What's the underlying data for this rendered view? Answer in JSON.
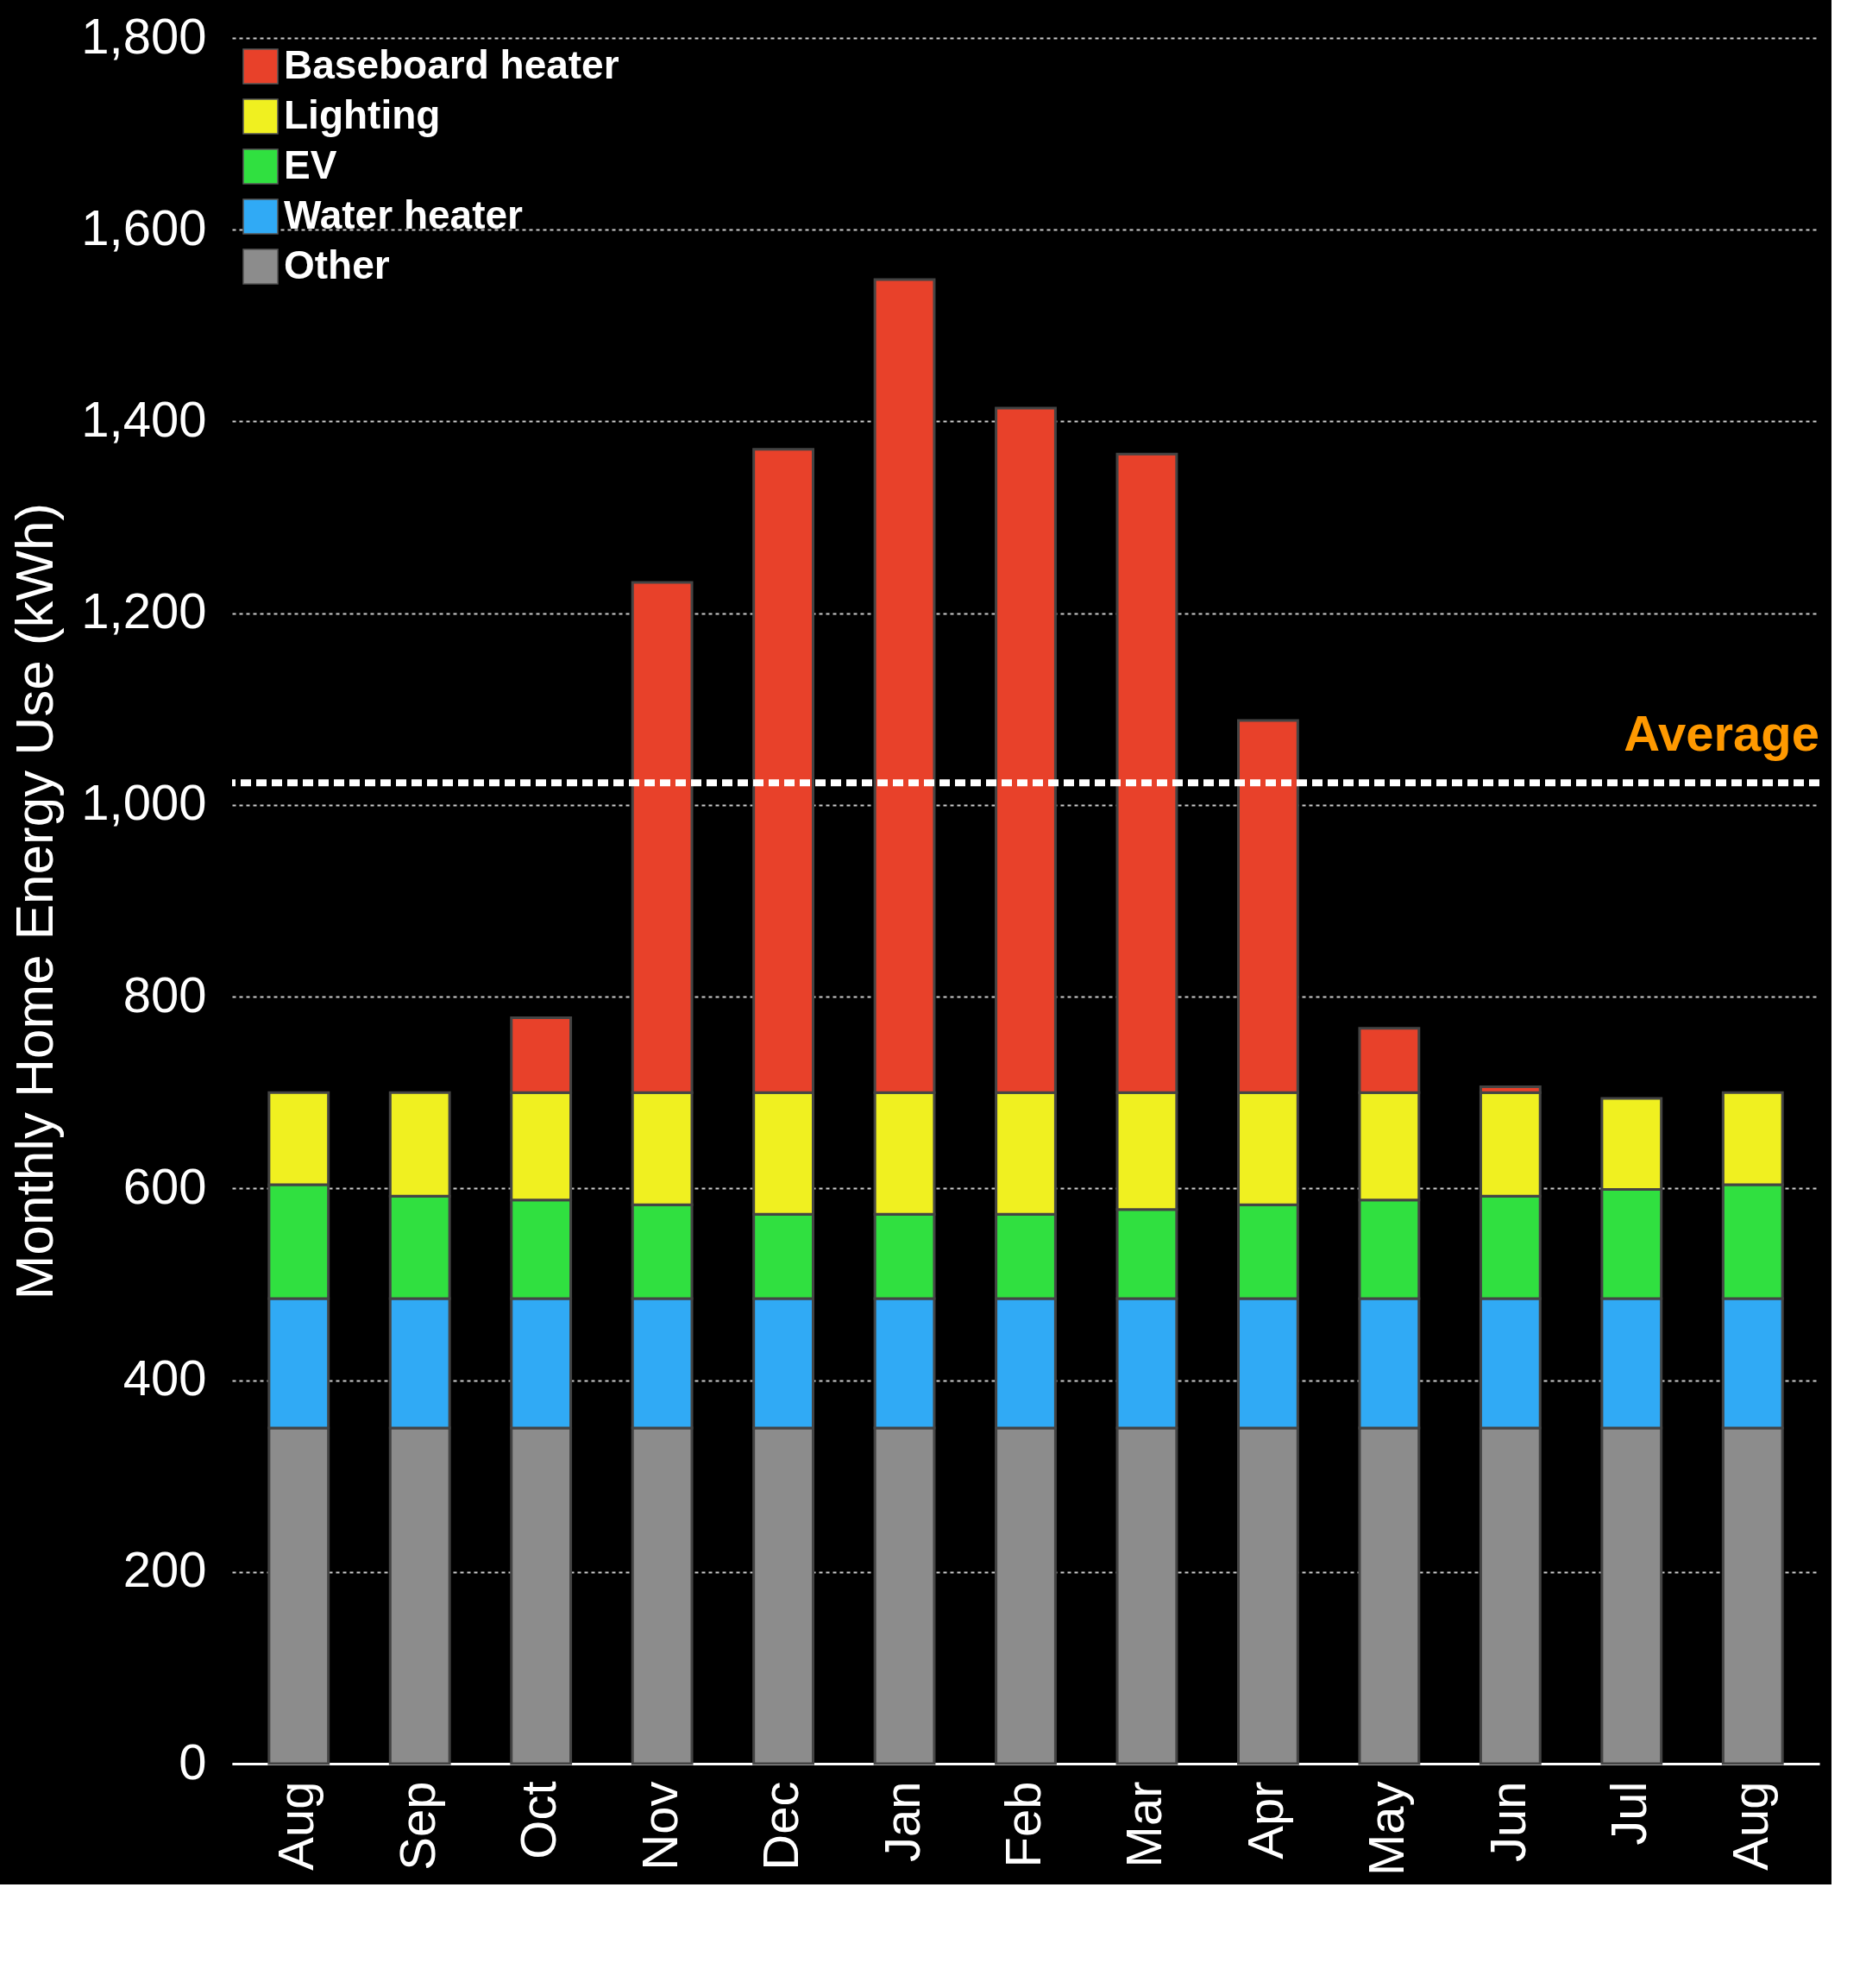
{
  "chart_data": {
    "type": "bar",
    "stacked": true,
    "ylabel": "Monthly Home Energy Use (kWh)",
    "categories": [
      "Aug",
      "Sep",
      "Oct",
      "Nov",
      "Dec",
      "Jan",
      "Feb",
      "Mar",
      "Apr",
      "May",
      "Jun",
      "Jul",
      "Aug"
    ],
    "series": [
      {
        "name": "Other",
        "color": "#8c8c8c",
        "values": [
          350,
          350,
          350,
          350,
          350,
          350,
          350,
          350,
          350,
          350,
          350,
          350,
          350
        ]
      },
      {
        "name": "Water heater",
        "color": "#30aaf5",
        "values": [
          135,
          135,
          135,
          135,
          135,
          135,
          135,
          135,
          135,
          135,
          135,
          135,
          135
        ]
      },
      {
        "name": "EV",
        "color": "#30e040",
        "values": [
          119,
          107,
          103,
          98,
          88,
          88,
          88,
          93,
          98,
          103,
          107,
          114,
          119
        ]
      },
      {
        "name": "Lighting",
        "color": "#f0f020",
        "values": [
          96,
          108,
          112,
          117,
          127,
          127,
          127,
          122,
          117,
          112,
          108,
          95,
          96
        ]
      },
      {
        "name": "Baseboard heater",
        "color": "#e8412a",
        "values": [
          null,
          null,
          78,
          532,
          671,
          848,
          714,
          666,
          388,
          67,
          6,
          null,
          null
        ]
      }
    ],
    "ylim": [
      0,
      1800
    ],
    "yticks": [
      0,
      200,
      400,
      600,
      800,
      {
        "value": 1000,
        "label": "1,000"
      },
      {
        "value": 1200,
        "label": "1,200"
      },
      {
        "value": 1400,
        "label": "1,400"
      },
      {
        "value": 1600,
        "label": "1,600"
      },
      {
        "value": 1800,
        "label": "1,800"
      }
    ],
    "grid": "y",
    "legend": "top left",
    "ref_lines": [
      {
        "axis": "y",
        "value": 1023,
        "label": "Average",
        "color": "#ffffff",
        "line_style": "dashed"
      }
    ]
  }
}
